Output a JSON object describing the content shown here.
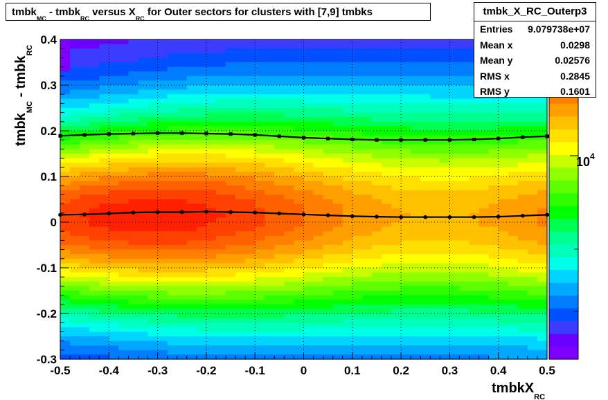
{
  "title": {
    "parts": [
      {
        "text": "tmbk",
        "sub": "MC"
      },
      {
        "text": " - tmbk",
        "sub": "RC"
      },
      {
        "text": " versus X",
        "sub": "RC"
      },
      {
        "text": " for Outer sectors for clusters with [7,9] tmbks",
        "sub": ""
      }
    ]
  },
  "stats": {
    "name": "tmbk_X_RC_Outerp3",
    "rows": [
      {
        "label": "Entries",
        "value": "9.079738e+07"
      },
      {
        "label": "Mean x",
        "value": "0.0298"
      },
      {
        "label": "Mean y",
        "value": "0.02576"
      },
      {
        "label": "RMS x",
        "value": "0.2845"
      },
      {
        "label": "RMS y",
        "value": "0.1601"
      }
    ]
  },
  "colorbar": {
    "label_base": "10",
    "label_exp": "4",
    "colors": [
      "#7f00ff",
      "#6a00ff",
      "#3c3cff",
      "#0050ff",
      "#007cff",
      "#00a8ff",
      "#00d4ff",
      "#00ffe8",
      "#00ffbc",
      "#00ff90",
      "#00ff50",
      "#00ff00",
      "#2eff00",
      "#5eff00",
      "#90ff00",
      "#c8ff00",
      "#ffff00",
      "#ffe000",
      "#ffc000",
      "#ffa000",
      "#ff8000",
      "#ff6000",
      "#ff4000",
      "#ff2000",
      "#ff0000"
    ]
  },
  "chart_data": {
    "type": "heatmap",
    "xlabel": {
      "text": "tmbkX",
      "sub": "RC"
    },
    "ylabel": {
      "text": "tmbk",
      "sub": "MC",
      "text2": " - tmbk",
      "sub2": "RC"
    },
    "xlim": [
      -0.5,
      0.5
    ],
    "ylim": [
      -0.3,
      0.4
    ],
    "x_ticks": [
      "-0.5",
      "-0.4",
      "-0.3",
      "-0.2",
      "-0.1",
      "0",
      "0.1",
      "0.2",
      "0.3",
      "0.4",
      "0.5"
    ],
    "x_tick_values": [
      -0.5,
      -0.4,
      -0.3,
      -0.2,
      -0.1,
      0,
      0.1,
      0.2,
      0.3,
      0.4,
      0.5
    ],
    "y_ticks": [
      "-0.3",
      "-0.2",
      "-0.1",
      "0",
      "0.1",
      "0.2",
      "0.3",
      "0.4"
    ],
    "y_tick_values": [
      -0.3,
      -0.2,
      -0.1,
      0,
      0.1,
      0.2,
      0.3,
      0.4
    ],
    "grid": true,
    "z_scale": "log",
    "mean_profile": {
      "x": [
        -0.5,
        -0.45,
        -0.4,
        -0.35,
        -0.3,
        -0.25,
        -0.2,
        -0.15,
        -0.1,
        -0.05,
        0,
        0.05,
        0.1,
        0.15,
        0.2,
        0.25,
        0.3,
        0.35,
        0.4,
        0.45,
        0.5
      ],
      "y": [
        0.016,
        0.017,
        0.019,
        0.021,
        0.022,
        0.022,
        0.023,
        0.022,
        0.021,
        0.019,
        0.017,
        0.015,
        0.013,
        0.012,
        0.011,
        0.011,
        0.011,
        0.011,
        0.012,
        0.014,
        0.016
      ]
    },
    "sigma_profile": {
      "x": [
        -0.5,
        -0.45,
        -0.4,
        -0.35,
        -0.3,
        -0.25,
        -0.2,
        -0.15,
        -0.1,
        -0.05,
        0,
        0.05,
        0.1,
        0.15,
        0.2,
        0.25,
        0.3,
        0.35,
        0.4,
        0.45,
        0.5
      ],
      "y": [
        0.189,
        0.191,
        0.193,
        0.194,
        0.195,
        0.195,
        0.194,
        0.193,
        0.191,
        0.188,
        0.185,
        0.183,
        0.181,
        0.18,
        0.18,
        0.18,
        0.18,
        0.181,
        0.183,
        0.186,
        0.188
      ]
    }
  }
}
